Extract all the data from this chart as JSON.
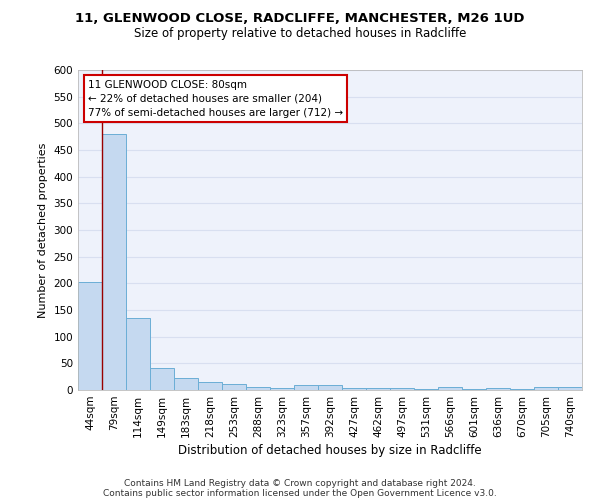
{
  "title1": "11, GLENWOOD CLOSE, RADCLIFFE, MANCHESTER, M26 1UD",
  "title2": "Size of property relative to detached houses in Radcliffe",
  "xlabel": "Distribution of detached houses by size in Radcliffe",
  "ylabel": "Number of detached properties",
  "categories": [
    "44sqm",
    "79sqm",
    "114sqm",
    "149sqm",
    "183sqm",
    "218sqm",
    "253sqm",
    "288sqm",
    "323sqm",
    "357sqm",
    "392sqm",
    "427sqm",
    "462sqm",
    "497sqm",
    "531sqm",
    "566sqm",
    "601sqm",
    "636sqm",
    "670sqm",
    "705sqm",
    "740sqm"
  ],
  "values": [
    203,
    480,
    135,
    42,
    23,
    15,
    12,
    5,
    4,
    10,
    10,
    4,
    3,
    3,
    1,
    5,
    1,
    4,
    1,
    6,
    5
  ],
  "bar_color": "#c5d9f0",
  "bar_edge_color": "#6baed6",
  "bg_color": "#eef2fb",
  "grid_color": "#d8dff0",
  "red_line_x": 0.5,
  "annotation_text": "11 GLENWOOD CLOSE: 80sqm\n← 22% of detached houses are smaller (204)\n77% of semi-detached houses are larger (712) →",
  "annotation_box_color": "#ffffff",
  "annotation_box_edge": "#cc0000",
  "footnote1": "Contains HM Land Registry data © Crown copyright and database right 2024.",
  "footnote2": "Contains public sector information licensed under the Open Government Licence v3.0.",
  "ylim": [
    0,
    600
  ],
  "yticks": [
    0,
    50,
    100,
    150,
    200,
    250,
    300,
    350,
    400,
    450,
    500,
    550,
    600
  ]
}
